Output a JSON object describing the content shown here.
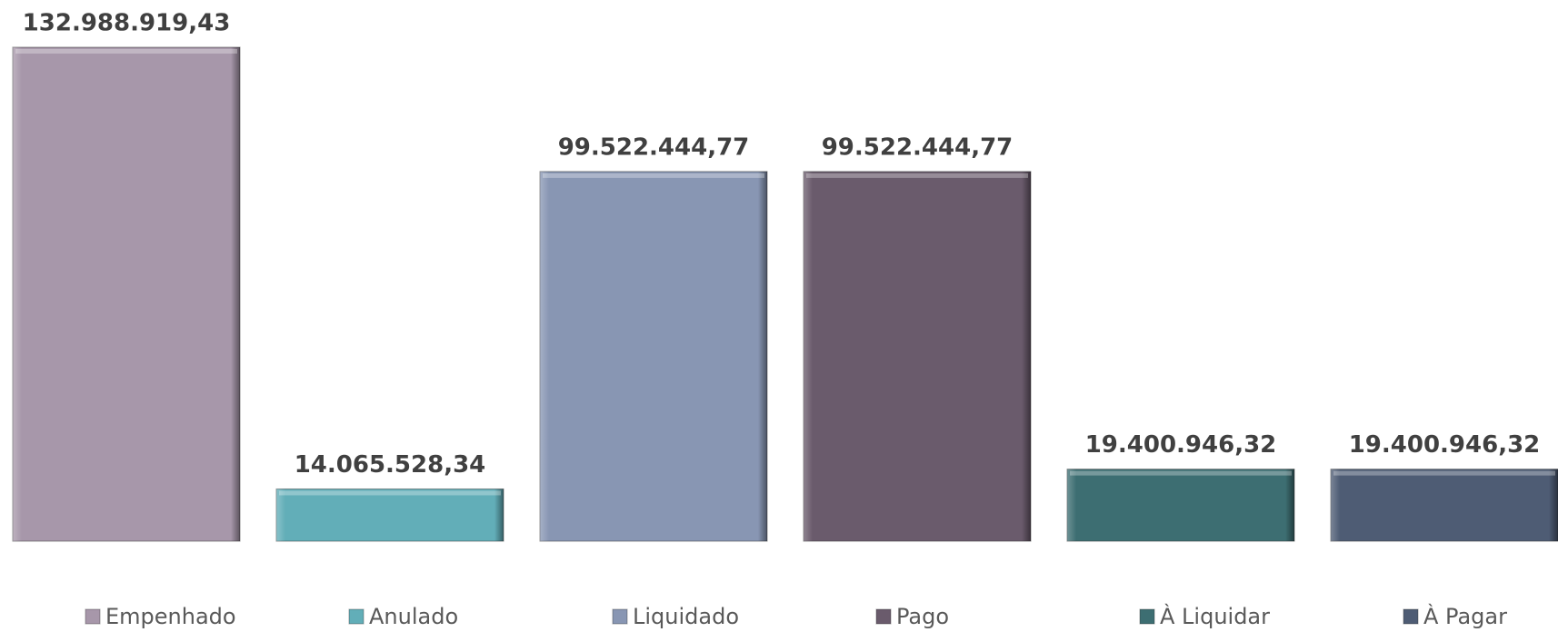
{
  "chart_data": {
    "type": "bar",
    "series": [
      {
        "name": "Empenhado",
        "color": "#a797aa",
        "values": [
          132988919.43
        ],
        "value_labels": [
          "132.988.919,43"
        ]
      },
      {
        "name": "Anulado",
        "color": "#62aeb8",
        "values": [
          14065528.34
        ],
        "value_labels": [
          "14.065.528,34"
        ]
      },
      {
        "name": "Liquidado",
        "color": "#8896b3",
        "values": [
          99522444.77
        ],
        "value_labels": [
          "99.522.444,77"
        ]
      },
      {
        "name": "Pago",
        "color": "#6a5b6c",
        "values": [
          99522444.77
        ],
        "value_labels": [
          "99.522.444,77"
        ]
      },
      {
        "name": "À Liquidar",
        "color": "#3d6e72",
        "values": [
          19400946.32
        ],
        "value_labels": [
          "19.400.946,32"
        ]
      },
      {
        "name": "À Pagar",
        "color": "#4e5c74",
        "values": [
          19400946.32
        ],
        "value_labels": [
          "19.400.946,32"
        ]
      }
    ],
    "legend": "bottom"
  }
}
